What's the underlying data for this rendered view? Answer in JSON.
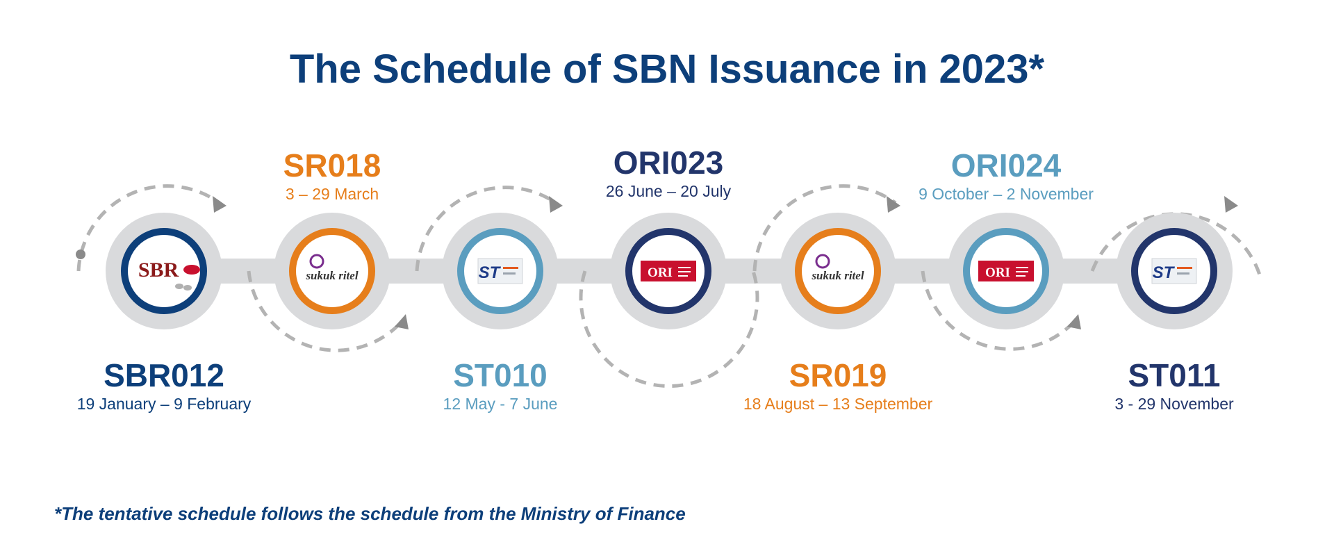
{
  "title": "The Schedule of SBN Issuance in 2023*",
  "footnote": "*The tentative schedule follows the schedule from the Ministry of Finance",
  "colors": {
    "navy": "#22356b",
    "orange": "#e67e1b",
    "teal": "#5a9dbf",
    "title_blue": "#0d3f7a",
    "track_grey": "#d9dadc",
    "arrow_grey": "#b3b3b3"
  },
  "issuances": [
    {
      "code": "SBR012",
      "dates": "19 January – 9 February",
      "color": "#0d3f7a",
      "logo": "sbr-logo",
      "logo_text": "SBR"
    },
    {
      "code": "SR018",
      "dates": "3 – 29 March",
      "color": "#e67e1b",
      "logo": "sukuk-ritel-logo",
      "logo_text": "sukuk ritel"
    },
    {
      "code": "ST010",
      "dates": "12 May - 7 June",
      "color": "#5a9dbf",
      "logo": "st-logo",
      "logo_text": "ST"
    },
    {
      "code": "ORI023",
      "dates": "26 June – 20 July",
      "color": "#22356b",
      "logo": "ori-logo",
      "logo_text": "ORI"
    },
    {
      "code": "SR019",
      "dates": "18 August – 13 September",
      "color": "#e67e1b",
      "logo": "sukuk-ritel-logo",
      "logo_text": "sukuk ritel"
    },
    {
      "code": "ORI024",
      "dates": "9 October – 2 November",
      "color": "#5a9dbf",
      "logo": "ori-logo",
      "logo_text": "ORI"
    },
    {
      "code": "ST011",
      "dates": "3 - 29 November",
      "color": "#22356b",
      "logo": "st-logo",
      "logo_text": "ST"
    }
  ]
}
